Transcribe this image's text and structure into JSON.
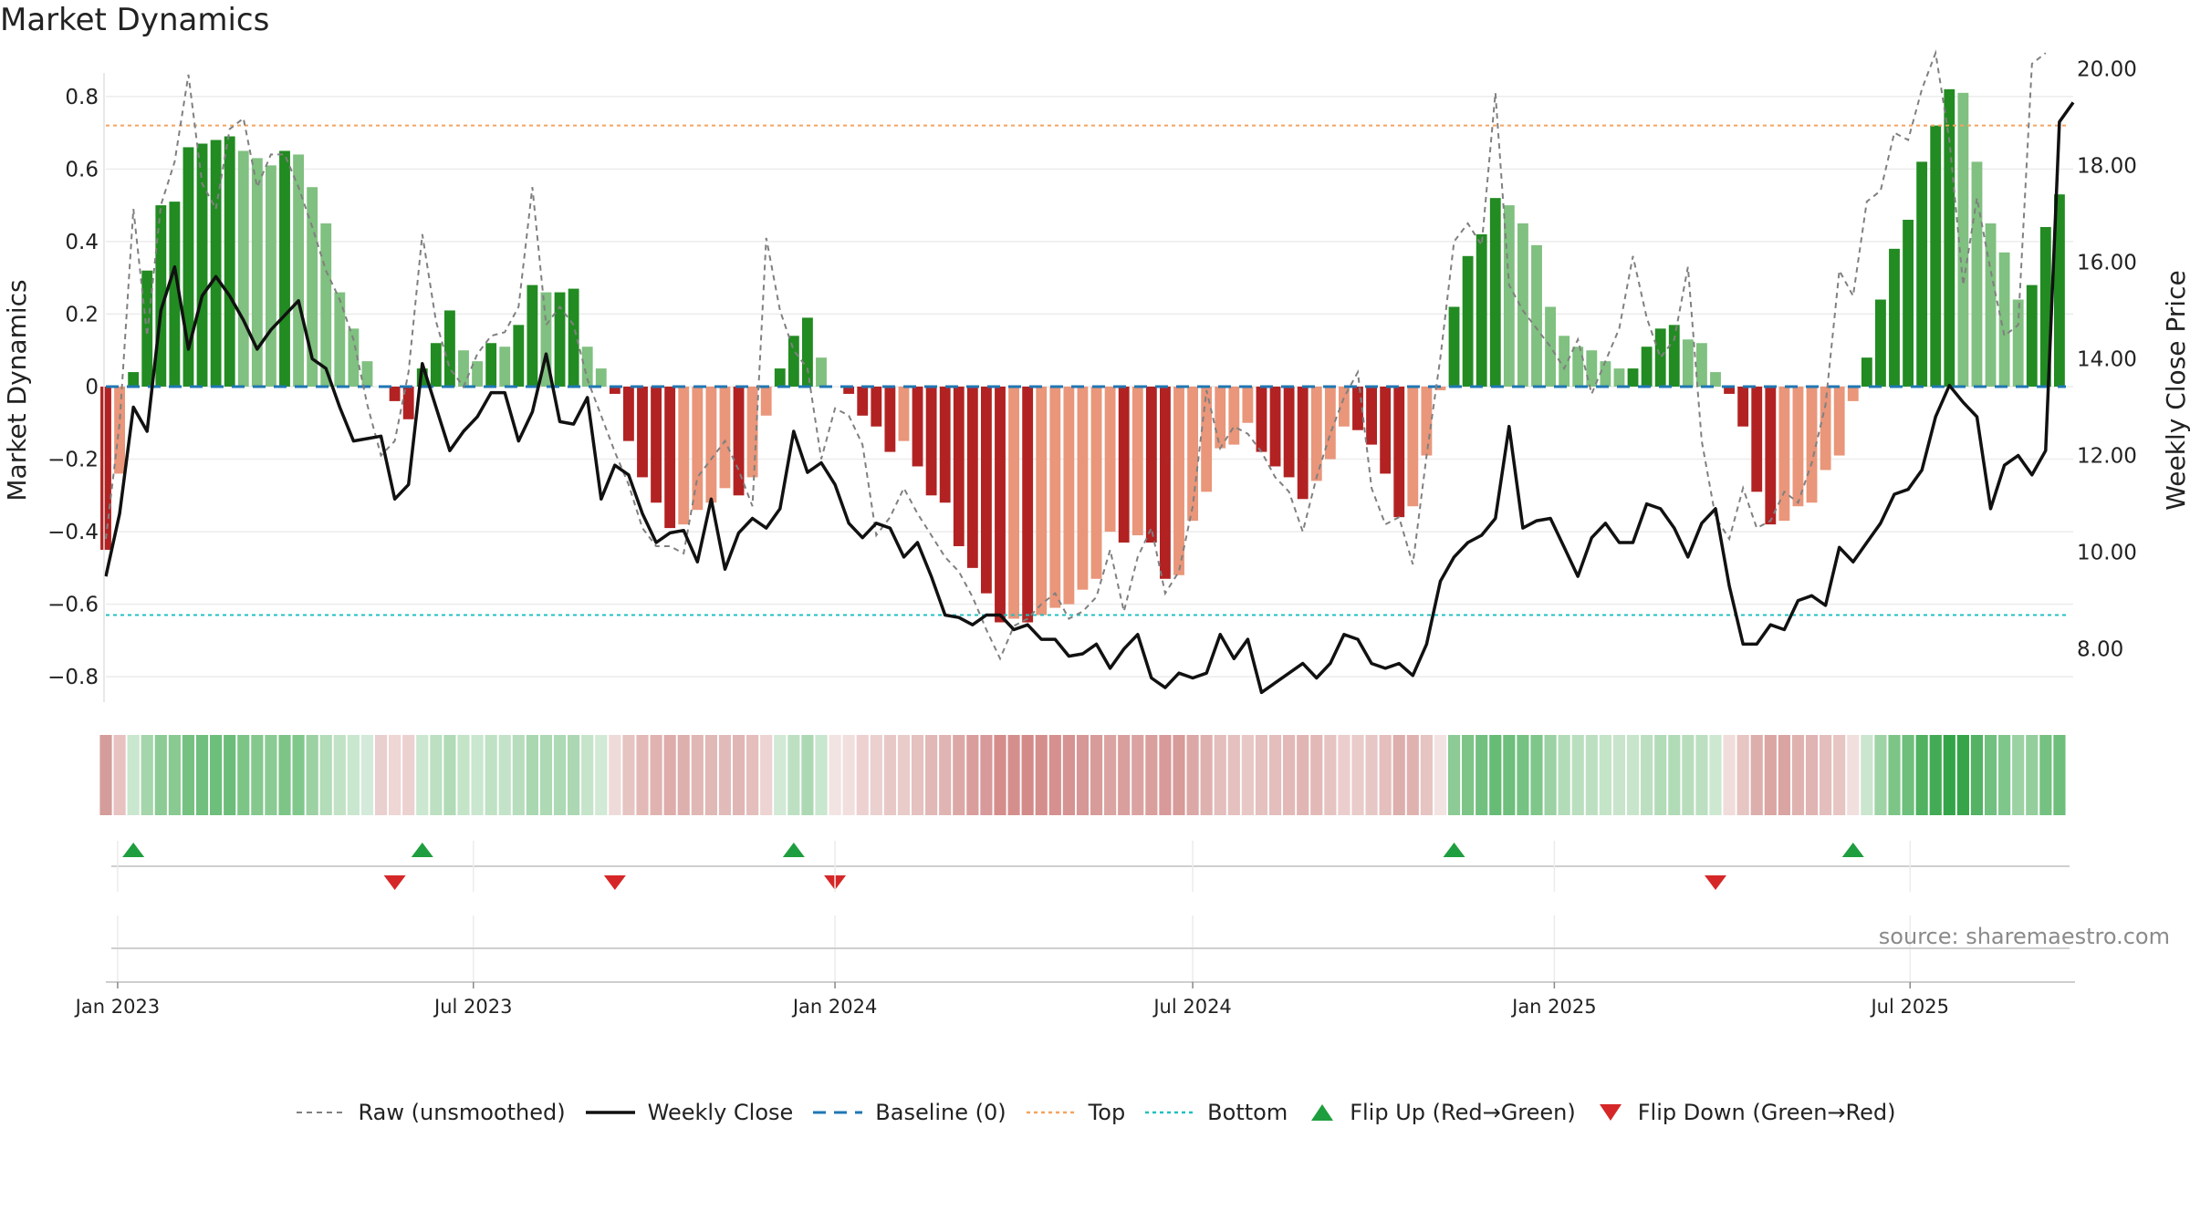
{
  "chart_data": {
    "type": "bar",
    "title": "Market Dynamics",
    "source_label": "source: sharemaestro.com",
    "ylabel_left": "Market Dynamics",
    "ylabel_right": "Weekly Close Price",
    "ylim_left": [
      -0.87,
      0.89
    ],
    "ylim_right": [
      6.9,
      20.1
    ],
    "yticks_left": [
      -0.8,
      -0.6,
      -0.4,
      -0.2,
      0,
      0.2,
      0.4,
      0.6,
      0.8
    ],
    "ytick_labels_left": [
      "−0.8",
      "−0.6",
      "−0.4",
      "−0.2",
      "0",
      "0.2",
      "0.4",
      "0.6",
      "0.8"
    ],
    "yticks_right": [
      8,
      10,
      12,
      14,
      16,
      18,
      20
    ],
    "ytick_labels_right": [
      "8.00",
      "10.00",
      "12.00",
      "14.00",
      "16.00",
      "18.00",
      "20.00"
    ],
    "top_level": 0.72,
    "bottom_level": -0.63,
    "baseline_level": 0,
    "x_start": "2022-12-26",
    "x_end": "2025-09-22",
    "x_ticks": [
      {
        "date": "2023-01-01",
        "label": "Jan 2023"
      },
      {
        "date": "2023-07-01",
        "label": "Jul 2023"
      },
      {
        "date": "2024-01-01",
        "label": "Jan 2024"
      },
      {
        "date": "2024-07-01",
        "label": "Jul 2024"
      },
      {
        "date": "2025-01-01",
        "label": "Jan 2025"
      },
      {
        "date": "2025-07-01",
        "label": "Jul 2025"
      }
    ],
    "bars": [
      -0.45,
      -0.24,
      0.04,
      0.32,
      0.5,
      0.51,
      0.66,
      0.67,
      0.68,
      0.69,
      0.65,
      0.63,
      0.61,
      0.65,
      0.64,
      0.55,
      0.45,
      0.26,
      0.16,
      0.07,
      0,
      -0.04,
      -0.09,
      0.05,
      0.12,
      0.21,
      0.1,
      0.07,
      0.12,
      0.11,
      0.17,
      0.28,
      0.26,
      0.26,
      0.27,
      0.11,
      0.05,
      -0.02,
      -0.15,
      -0.25,
      -0.32,
      -0.39,
      -0.38,
      -0.34,
      -0.32,
      -0.28,
      -0.3,
      -0.25,
      -0.08,
      0.05,
      0.14,
      0.19,
      0.08,
      0,
      -0.02,
      -0.08,
      -0.11,
      -0.18,
      -0.15,
      -0.22,
      -0.3,
      -0.32,
      -0.44,
      -0.5,
      -0.57,
      -0.65,
      -0.64,
      -0.65,
      -0.63,
      -0.61,
      -0.6,
      -0.56,
      -0.53,
      -0.4,
      -0.43,
      -0.41,
      -0.43,
      -0.53,
      -0.52,
      -0.37,
      -0.29,
      -0.17,
      -0.16,
      -0.1,
      -0.18,
      -0.22,
      -0.25,
      -0.31,
      -0.26,
      -0.2,
      -0.11,
      -0.12,
      -0.16,
      -0.24,
      -0.36,
      -0.33,
      -0.19,
      -0.01,
      0.22,
      0.36,
      0.42,
      0.52,
      0.5,
      0.45,
      0.39,
      0.22,
      0.14,
      0.11,
      0.1,
      0.07,
      0.05,
      0.05,
      0.11,
      0.16,
      0.17,
      0.13,
      0.12,
      0.04,
      -0.02,
      -0.11,
      -0.29,
      -0.38,
      -0.37,
      -0.33,
      -0.32,
      -0.23,
      -0.19,
      -0.04,
      0.08,
      0.24,
      0.38,
      0.46,
      0.62,
      0.72,
      0.82,
      0.81,
      0.62,
      0.45,
      0.37,
      0.24,
      0.28,
      0.44,
      0.53
    ],
    "raw": [
      -0.42,
      -0.1,
      0.49,
      0.14,
      0.5,
      0.62,
      0.86,
      0.56,
      0.49,
      0.71,
      0.74,
      0.55,
      0.64,
      0.64,
      0.55,
      0.44,
      0.32,
      0.24,
      0.13,
      -0.05,
      -0.19,
      -0.15,
      0.04,
      0.42,
      0.18,
      0.05,
      0.0,
      0.09,
      0.14,
      0.15,
      0.22,
      0.55,
      0.17,
      0.22,
      0.17,
      0.02,
      -0.08,
      -0.18,
      -0.27,
      -0.39,
      -0.44,
      -0.44,
      -0.46,
      -0.25,
      -0.2,
      -0.15,
      -0.23,
      -0.33,
      0.41,
      0.21,
      0.1,
      0.05,
      -0.2,
      -0.06,
      -0.08,
      -0.16,
      -0.41,
      -0.36,
      -0.28,
      -0.35,
      -0.41,
      -0.47,
      -0.51,
      -0.58,
      -0.67,
      -0.75,
      -0.66,
      -0.64,
      -0.6,
      -0.57,
      -0.64,
      -0.62,
      -0.58,
      -0.45,
      -0.62,
      -0.47,
      -0.39,
      -0.57,
      -0.51,
      -0.33,
      -0.01,
      -0.17,
      -0.11,
      -0.13,
      -0.18,
      -0.25,
      -0.29,
      -0.4,
      -0.25,
      -0.13,
      -0.03,
      0.04,
      -0.28,
      -0.38,
      -0.36,
      -0.49,
      -0.19,
      0.08,
      0.4,
      0.45,
      0.39,
      0.81,
      0.28,
      0.21,
      0.16,
      0.11,
      0.05,
      0.13,
      -0.02,
      0.07,
      0.16,
      0.36,
      0.19,
      0.08,
      0.13,
      0.33,
      -0.15,
      -0.36,
      -0.42,
      -0.28,
      -0.39,
      -0.37,
      -0.29,
      -0.32,
      -0.21,
      -0.05,
      0.32,
      0.25,
      0.51,
      0.54,
      0.7,
      0.68,
      0.82,
      0.92,
      0.68,
      0.28,
      0.52,
      0.32,
      0.14,
      0.17,
      0.89,
      0.92
    ],
    "close": [
      9.5,
      10.8,
      13.0,
      12.5,
      15.0,
      15.9,
      14.2,
      15.3,
      15.7,
      15.3,
      14.8,
      14.2,
      14.6,
      14.9,
      15.2,
      14.0,
      13.8,
      13.0,
      12.3,
      12.35,
      12.4,
      11.1,
      11.4,
      13.9,
      13.0,
      12.1,
      12.5,
      12.8,
      13.3,
      13.3,
      12.3,
      12.9,
      14.1,
      12.7,
      12.65,
      13.2,
      11.1,
      11.8,
      11.6,
      10.8,
      10.2,
      10.4,
      10.45,
      9.8,
      11.1,
      9.65,
      10.4,
      10.7,
      10.5,
      10.9,
      12.5,
      11.65,
      11.85,
      11.4,
      10.6,
      10.3,
      10.6,
      10.5,
      9.9,
      10.2,
      9.5,
      8.7,
      8.65,
      8.5,
      8.7,
      8.7,
      8.4,
      8.5,
      8.2,
      8.2,
      7.85,
      7.9,
      8.1,
      7.6,
      8.0,
      8.3,
      7.4,
      7.2,
      7.5,
      7.4,
      7.5,
      8.3,
      7.8,
      8.2,
      7.1,
      7.3,
      7.5,
      7.7,
      7.4,
      7.7,
      8.3,
      8.2,
      7.7,
      7.6,
      7.7,
      7.45,
      8.1,
      9.4,
      9.9,
      10.2,
      10.35,
      10.7,
      12.6,
      10.5,
      10.65,
      10.7,
      10.1,
      9.5,
      10.3,
      10.6,
      10.2,
      10.2,
      11.0,
      10.9,
      10.5,
      9.9,
      10.6,
      10.9,
      9.3,
      8.1,
      8.1,
      8.5,
      8.4,
      9.0,
      9.1,
      8.9,
      10.1,
      9.8,
      10.2,
      10.6,
      11.2,
      11.3,
      11.7,
      12.8,
      13.45,
      13.1,
      12.8,
      10.9,
      11.8,
      12.0,
      11.6,
      12.1,
      18.9,
      19.3
    ],
    "strip_colors": [
      "#d49c9a",
      "#e7c2c0",
      "#c9e6ce",
      "#a4d5ab",
      "#8ccb95",
      "#89ca92",
      "#74c181",
      "#70bf7e",
      "#6ebe7c",
      "#6bbd79",
      "#7cc587",
      "#84c88e",
      "#8acb93",
      "#7cc587",
      "#80c78b",
      "#9bd1a3",
      "#b3dcb8",
      "#c1e2c5",
      "#c9e6ce",
      "#d3eada",
      "#e9cfce",
      "#eed6d5",
      "#ebd1d0",
      "#cbe7d1",
      "#bce0c1",
      "#b0dbb6",
      "#c4e4c8",
      "#c9e6ce",
      "#bfe1c4",
      "#c2e3c7",
      "#b8ddbd",
      "#a9d7b0",
      "#add9b4",
      "#add9b4",
      "#abd8b2",
      "#c5e4c9",
      "#d1e9d5",
      "#eedad9",
      "#e6c4c2",
      "#e2b9b7",
      "#e0b3b1",
      "#deacaa",
      "#ddb0ae",
      "#e0b7b5",
      "#e0b8b6",
      "#e1bbb9",
      "#e0b6b4",
      "#e3bebc",
      "#edd3d2",
      "#d1e9d5",
      "#bde0c2",
      "#acd9b3",
      "#c9e6ce",
      "#f2e4e3",
      "#f1dfde",
      "#ecd1d0",
      "#ead0cf",
      "#e8c8c6",
      "#e9cbc9",
      "#e5c1bf",
      "#e1b8b6",
      "#e0b4b2",
      "#dba8a6",
      "#d99e9c",
      "#d7999a",
      "#d48d8b",
      "#d48f8d",
      "#d38b89",
      "#d48f8d",
      "#d5918f",
      "#d59391",
      "#d69896",
      "#d79c9a",
      "#daa4a2",
      "#d99f9d",
      "#daa3a1",
      "#d99f9d",
      "#d7999a",
      "#d79b99",
      "#dba8a6",
      "#deb1af",
      "#e3bebc",
      "#e4c0be",
      "#e8c8c6",
      "#e4c1bf",
      "#e3bebc",
      "#e2b9b7",
      "#e0b5b3",
      "#e2b9b7",
      "#e5c3c1",
      "#eacdcc",
      "#e9cbc9",
      "#e7c7c5",
      "#e4bfbd",
      "#dcaeac",
      "#dfb2b0",
      "#e5c4c2",
      "#f2e3e2",
      "#8ccb95",
      "#7cc587",
      "#72c080",
      "#66bb75",
      "#6ebe7c",
      "#76c282",
      "#7fc68a",
      "#9bd1a3",
      "#b2dcb7",
      "#b9dfbe",
      "#bcdfc1",
      "#c4e4c8",
      "#c8e5cc",
      "#c6e5ca",
      "#bcdfc1",
      "#b2dcb7",
      "#b0dbb6",
      "#b8ddbd",
      "#bbdfc0",
      "#cde8d1",
      "#f0dcdb",
      "#e6c5c3",
      "#dcaeac",
      "#daa5a3",
      "#d9a4a2",
      "#dfb2b0",
      "#e0b4b2",
      "#e3bebc",
      "#e6c5c3",
      "#f1dfde",
      "#cae6cf",
      "#9ed3a6",
      "#7cc587",
      "#6ebe7c",
      "#50b161",
      "#43ab55",
      "#34a448",
      "#36a54a",
      "#53b264",
      "#71c07f",
      "#7fc68a",
      "#9bd1a3",
      "#93ce9c",
      "#75c182",
      "#6ebe7c"
    ],
    "flip_up_weeks": [
      2,
      23,
      50,
      98,
      127
    ],
    "flip_down_weeks": [
      21,
      37,
      53,
      117
    ],
    "legend": [
      {
        "key": "raw",
        "label": "Raw (unsmoothed)"
      },
      {
        "key": "close",
        "label": "Weekly Close"
      },
      {
        "key": "baseline",
        "label": "Baseline (0)"
      },
      {
        "key": "top",
        "label": "Top"
      },
      {
        "key": "bottom",
        "label": "Bottom"
      },
      {
        "key": "flipup",
        "label": "Flip Up (Red→Green)"
      },
      {
        "key": "flipdown",
        "label": "Flip Down (Green→Red)"
      }
    ],
    "colors": {
      "green_strong": "#228b22",
      "green_light": "#80c080",
      "red_strong": "#b22222",
      "red_light": "#e9967a",
      "close_line": "#111111",
      "raw_line": "#808080",
      "baseline": "#1f77b4",
      "top": "#f4a460",
      "bottom": "#20c0c0",
      "flip_up": "#1e9e3e",
      "flip_down": "#d62728"
    }
  }
}
